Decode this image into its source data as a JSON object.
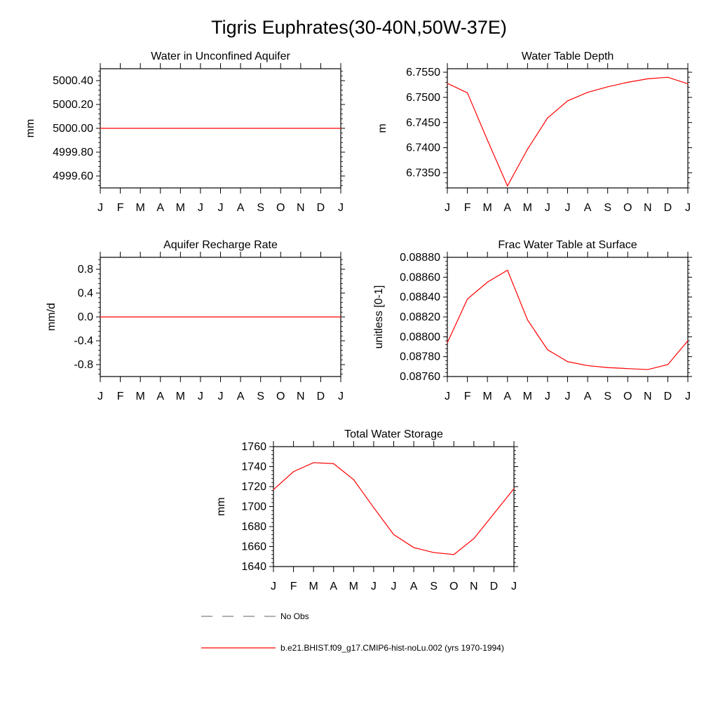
{
  "figure_title": "Tigris Euphrates(30-40N,50W-37E)",
  "months": [
    "J",
    "F",
    "M",
    "A",
    "M",
    "J",
    "J",
    "A",
    "S",
    "O",
    "N",
    "D",
    "J"
  ],
  "colors": {
    "model": "#ff0000",
    "obs": "#808080",
    "axis": "#000000"
  },
  "legend": {
    "obs_label": "No Obs",
    "model_label": "b.e21.BHIST.f09_g17.CMIP6-hist-noLu.002 (yrs 1970-1994)"
  },
  "chart_data": [
    {
      "type": "line",
      "title": "Water in Unconfined Aquifer",
      "ylabel": "mm",
      "xlabel": "",
      "ylim": [
        4999.5,
        5000.5
      ],
      "yticks": [
        "5000.40",
        "5000.20",
        "5000.00",
        "4999.80",
        "4999.60"
      ],
      "series": [
        {
          "values": [
            5000,
            5000,
            5000,
            5000,
            5000,
            5000,
            5000,
            5000,
            5000,
            5000,
            5000,
            5000,
            5000
          ]
        }
      ]
    },
    {
      "type": "line",
      "title": "Water Table Depth",
      "ylabel": "m",
      "xlabel": "",
      "ylim": [
        6.732,
        6.7557
      ],
      "yticks": [
        "6.7550",
        "6.7500",
        "6.7450",
        "6.7400",
        "6.7350"
      ],
      "series": [
        {
          "values": [
            6.7528,
            6.7509,
            6.7415,
            6.7324,
            6.7397,
            6.7459,
            6.7493,
            6.751,
            6.7521,
            6.753,
            6.7537,
            6.754,
            6.7527
          ]
        }
      ]
    },
    {
      "type": "line",
      "title": "Aquifer Recharge Rate",
      "ylabel": "mm/d",
      "xlabel": "",
      "ylim": [
        -1.0,
        1.0
      ],
      "yticks": [
        "0.8",
        "0.4",
        "0.0",
        "-0.4",
        "-0.8"
      ],
      "series": [
        {
          "values": [
            0,
            0,
            0,
            0,
            0,
            0,
            0,
            0,
            0,
            0,
            0,
            0,
            0
          ]
        }
      ]
    },
    {
      "type": "line",
      "title": "Frac Water Table at Surface",
      "ylabel": "unitless [0-1]",
      "xlabel": "",
      "ylim": [
        0.0876,
        0.0888
      ],
      "yticks": [
        "0.08880",
        "0.08860",
        "0.08840",
        "0.08820",
        "0.08800",
        "0.08780",
        "0.08760"
      ],
      "series": [
        {
          "values": [
            0.08794,
            0.08838,
            0.08855,
            0.08867,
            0.08817,
            0.08787,
            0.08775,
            0.08771,
            0.08769,
            0.08768,
            0.08767,
            0.08772,
            0.08796
          ]
        }
      ]
    },
    {
      "type": "line",
      "title": "Total Water Storage",
      "ylabel": "mm",
      "xlabel": "",
      "ylim": [
        1640,
        1760
      ],
      "yticks": [
        "1760",
        "1740",
        "1720",
        "1700",
        "1680",
        "1660",
        "1640"
      ],
      "series": [
        {
          "values": [
            1717,
            1735,
            1744,
            1743,
            1727,
            1699,
            1672,
            1659,
            1654,
            1652,
            1668,
            1693,
            1718
          ]
        }
      ]
    }
  ]
}
